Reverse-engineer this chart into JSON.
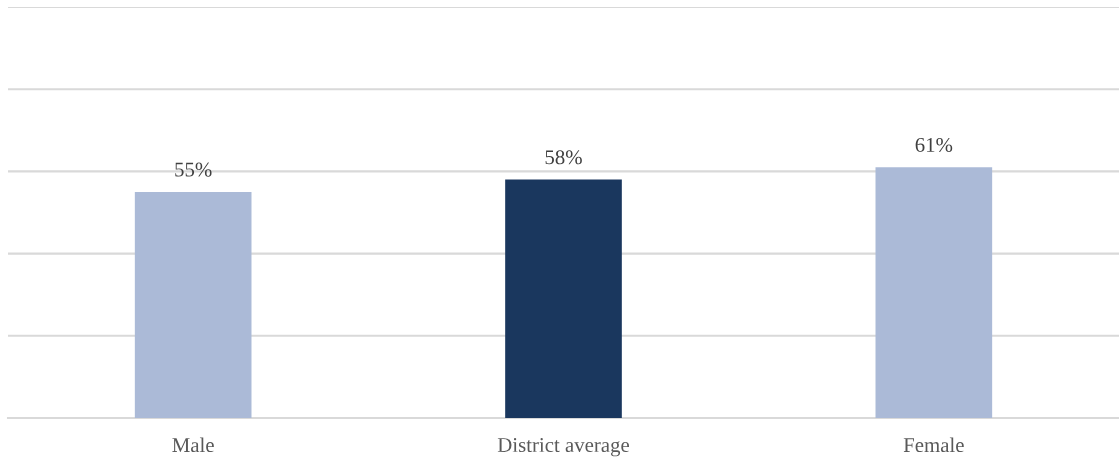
{
  "chart_data": {
    "type": "bar",
    "categories": [
      "Male",
      "District average",
      "Female"
    ],
    "values": [
      55,
      58,
      61
    ],
    "colors": [
      "#abbad7",
      "#1a375e",
      "#abbad7"
    ],
    "value_labels": [
      "55%",
      "58%",
      "61%"
    ],
    "ylim": [
      0,
      100
    ],
    "yticks": [
      {
        "value": 0,
        "label": null
      },
      {
        "value": 20,
        "label": null
      },
      {
        "value": 40,
        "label": null
      },
      {
        "value": 60,
        "label": null
      },
      {
        "value": 80,
        "label": null
      },
      {
        "value": 100,
        "label": null
      }
    ],
    "tick_labels": "x",
    "grid": "y",
    "legend": false
  }
}
